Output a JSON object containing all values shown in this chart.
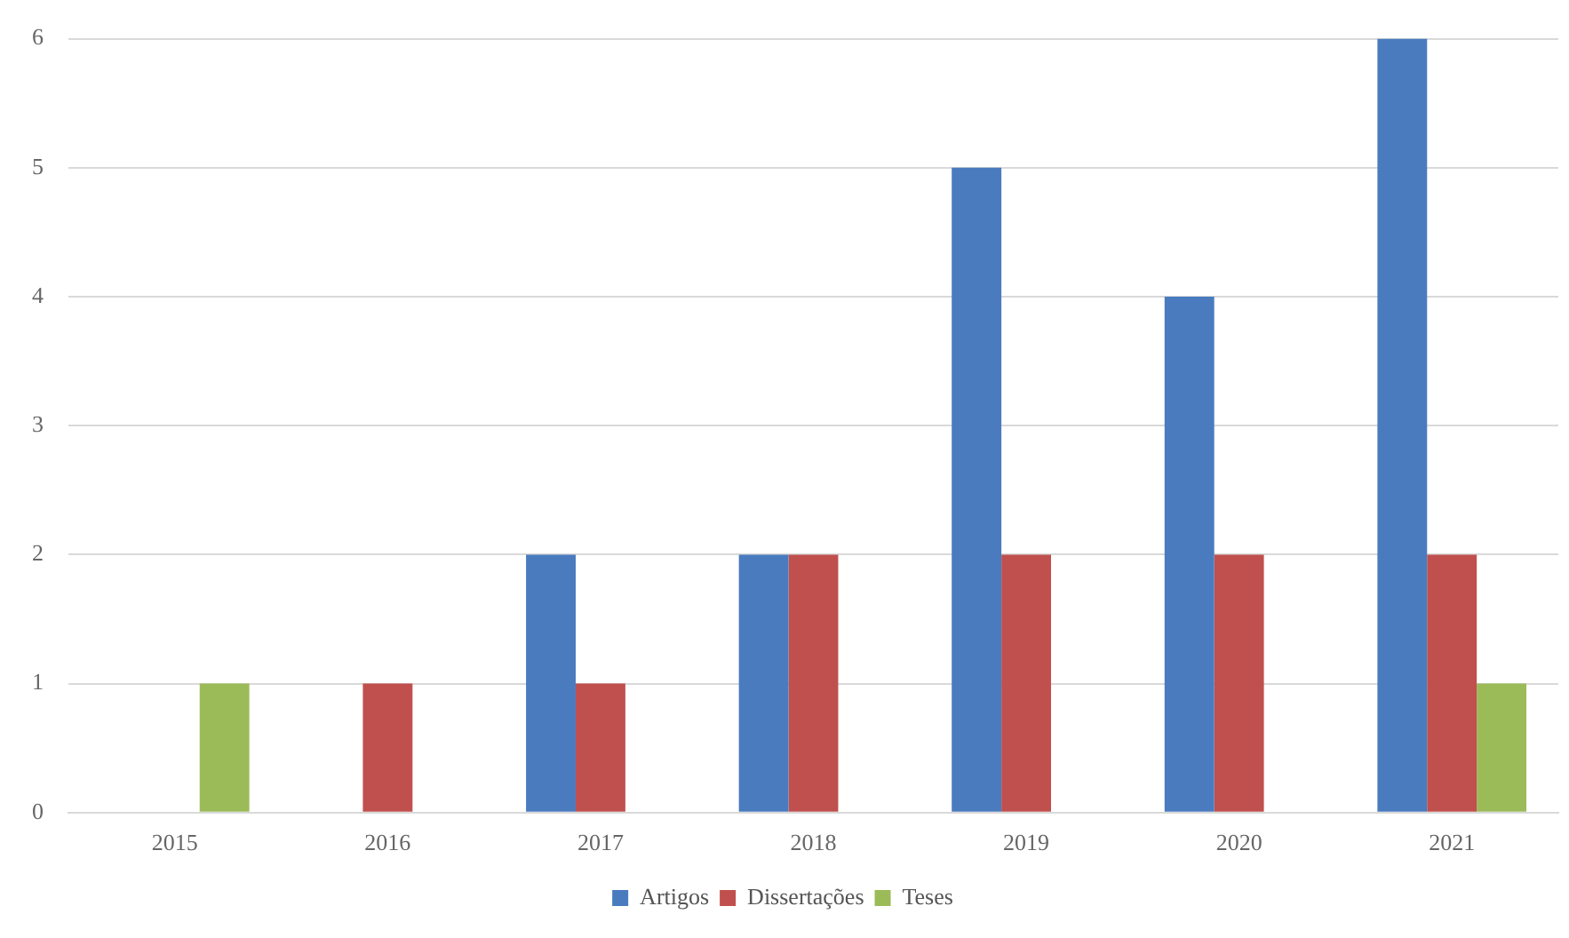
{
  "chart_data": {
    "type": "bar",
    "categories": [
      "2015",
      "2016",
      "2017",
      "2018",
      "2019",
      "2020",
      "2021"
    ],
    "series": [
      {
        "name": "Artigos",
        "color": "#4a7bbf",
        "values": [
          0,
          0,
          2,
          2,
          5,
          4,
          6
        ]
      },
      {
        "name": "Dissertações",
        "color": "#c0504d",
        "values": [
          0,
          1,
          1,
          2,
          2,
          2,
          2
        ]
      },
      {
        "name": "Teses",
        "color": "#9bbb59",
        "values": [
          1,
          0,
          0,
          0,
          0,
          0,
          1
        ]
      }
    ],
    "ylim": [
      0,
      6
    ],
    "yticks": [
      0,
      1,
      2,
      3,
      4,
      5,
      6
    ],
    "grid": "y",
    "legend": "bottom"
  }
}
